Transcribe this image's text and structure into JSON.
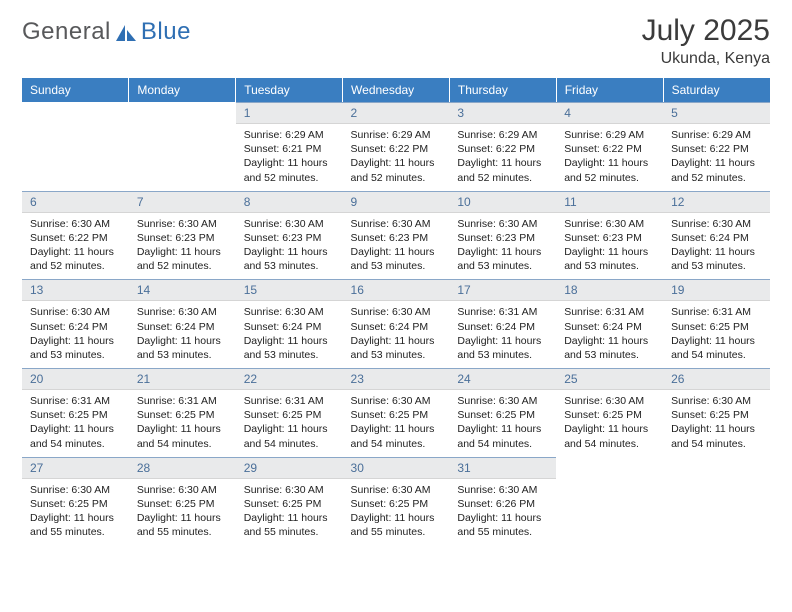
{
  "logo": {
    "brand_gray": "General",
    "brand_blue": "Blue"
  },
  "colors": {
    "header_bg": "#3a7ec1",
    "daynum_bg": "#e9eaeb",
    "daynum_fg": "#4a6f99",
    "daynum_border_top": "#8aa7c8",
    "logo_gray": "#58595b",
    "logo_blue": "#2f6fb3"
  },
  "title": "July 2025",
  "location": "Ukunda, Kenya",
  "weekdays": [
    "Sunday",
    "Monday",
    "Tuesday",
    "Wednesday",
    "Thursday",
    "Friday",
    "Saturday"
  ],
  "weeks": [
    [
      null,
      null,
      {
        "n": "1",
        "sr": "Sunrise: 6:29 AM",
        "ss": "Sunset: 6:21 PM",
        "dl": "Daylight: 11 hours and 52 minutes."
      },
      {
        "n": "2",
        "sr": "Sunrise: 6:29 AM",
        "ss": "Sunset: 6:22 PM",
        "dl": "Daylight: 11 hours and 52 minutes."
      },
      {
        "n": "3",
        "sr": "Sunrise: 6:29 AM",
        "ss": "Sunset: 6:22 PM",
        "dl": "Daylight: 11 hours and 52 minutes."
      },
      {
        "n": "4",
        "sr": "Sunrise: 6:29 AM",
        "ss": "Sunset: 6:22 PM",
        "dl": "Daylight: 11 hours and 52 minutes."
      },
      {
        "n": "5",
        "sr": "Sunrise: 6:29 AM",
        "ss": "Sunset: 6:22 PM",
        "dl": "Daylight: 11 hours and 52 minutes."
      }
    ],
    [
      {
        "n": "6",
        "sr": "Sunrise: 6:30 AM",
        "ss": "Sunset: 6:22 PM",
        "dl": "Daylight: 11 hours and 52 minutes."
      },
      {
        "n": "7",
        "sr": "Sunrise: 6:30 AM",
        "ss": "Sunset: 6:23 PM",
        "dl": "Daylight: 11 hours and 52 minutes."
      },
      {
        "n": "8",
        "sr": "Sunrise: 6:30 AM",
        "ss": "Sunset: 6:23 PM",
        "dl": "Daylight: 11 hours and 53 minutes."
      },
      {
        "n": "9",
        "sr": "Sunrise: 6:30 AM",
        "ss": "Sunset: 6:23 PM",
        "dl": "Daylight: 11 hours and 53 minutes."
      },
      {
        "n": "10",
        "sr": "Sunrise: 6:30 AM",
        "ss": "Sunset: 6:23 PM",
        "dl": "Daylight: 11 hours and 53 minutes."
      },
      {
        "n": "11",
        "sr": "Sunrise: 6:30 AM",
        "ss": "Sunset: 6:23 PM",
        "dl": "Daylight: 11 hours and 53 minutes."
      },
      {
        "n": "12",
        "sr": "Sunrise: 6:30 AM",
        "ss": "Sunset: 6:24 PM",
        "dl": "Daylight: 11 hours and 53 minutes."
      }
    ],
    [
      {
        "n": "13",
        "sr": "Sunrise: 6:30 AM",
        "ss": "Sunset: 6:24 PM",
        "dl": "Daylight: 11 hours and 53 minutes."
      },
      {
        "n": "14",
        "sr": "Sunrise: 6:30 AM",
        "ss": "Sunset: 6:24 PM",
        "dl": "Daylight: 11 hours and 53 minutes."
      },
      {
        "n": "15",
        "sr": "Sunrise: 6:30 AM",
        "ss": "Sunset: 6:24 PM",
        "dl": "Daylight: 11 hours and 53 minutes."
      },
      {
        "n": "16",
        "sr": "Sunrise: 6:30 AM",
        "ss": "Sunset: 6:24 PM",
        "dl": "Daylight: 11 hours and 53 minutes."
      },
      {
        "n": "17",
        "sr": "Sunrise: 6:31 AM",
        "ss": "Sunset: 6:24 PM",
        "dl": "Daylight: 11 hours and 53 minutes."
      },
      {
        "n": "18",
        "sr": "Sunrise: 6:31 AM",
        "ss": "Sunset: 6:24 PM",
        "dl": "Daylight: 11 hours and 53 minutes."
      },
      {
        "n": "19",
        "sr": "Sunrise: 6:31 AM",
        "ss": "Sunset: 6:25 PM",
        "dl": "Daylight: 11 hours and 54 minutes."
      }
    ],
    [
      {
        "n": "20",
        "sr": "Sunrise: 6:31 AM",
        "ss": "Sunset: 6:25 PM",
        "dl": "Daylight: 11 hours and 54 minutes."
      },
      {
        "n": "21",
        "sr": "Sunrise: 6:31 AM",
        "ss": "Sunset: 6:25 PM",
        "dl": "Daylight: 11 hours and 54 minutes."
      },
      {
        "n": "22",
        "sr": "Sunrise: 6:31 AM",
        "ss": "Sunset: 6:25 PM",
        "dl": "Daylight: 11 hours and 54 minutes."
      },
      {
        "n": "23",
        "sr": "Sunrise: 6:30 AM",
        "ss": "Sunset: 6:25 PM",
        "dl": "Daylight: 11 hours and 54 minutes."
      },
      {
        "n": "24",
        "sr": "Sunrise: 6:30 AM",
        "ss": "Sunset: 6:25 PM",
        "dl": "Daylight: 11 hours and 54 minutes."
      },
      {
        "n": "25",
        "sr": "Sunrise: 6:30 AM",
        "ss": "Sunset: 6:25 PM",
        "dl": "Daylight: 11 hours and 54 minutes."
      },
      {
        "n": "26",
        "sr": "Sunrise: 6:30 AM",
        "ss": "Sunset: 6:25 PM",
        "dl": "Daylight: 11 hours and 54 minutes."
      }
    ],
    [
      {
        "n": "27",
        "sr": "Sunrise: 6:30 AM",
        "ss": "Sunset: 6:25 PM",
        "dl": "Daylight: 11 hours and 55 minutes."
      },
      {
        "n": "28",
        "sr": "Sunrise: 6:30 AM",
        "ss": "Sunset: 6:25 PM",
        "dl": "Daylight: 11 hours and 55 minutes."
      },
      {
        "n": "29",
        "sr": "Sunrise: 6:30 AM",
        "ss": "Sunset: 6:25 PM",
        "dl": "Daylight: 11 hours and 55 minutes."
      },
      {
        "n": "30",
        "sr": "Sunrise: 6:30 AM",
        "ss": "Sunset: 6:25 PM",
        "dl": "Daylight: 11 hours and 55 minutes."
      },
      {
        "n": "31",
        "sr": "Sunrise: 6:30 AM",
        "ss": "Sunset: 6:26 PM",
        "dl": "Daylight: 11 hours and 55 minutes."
      },
      null,
      null
    ]
  ]
}
